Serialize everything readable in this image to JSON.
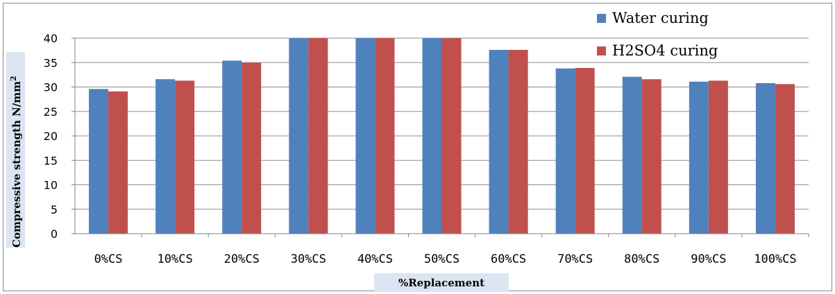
{
  "chart_data": {
    "type": "bar",
    "categories": [
      "0%CS",
      "10%CS",
      "20%CS",
      "30%CS",
      "40%CS",
      "50%CS",
      "60%CS",
      "70%CS",
      "80%CS",
      "90%CS",
      "100%CS"
    ],
    "series": [
      {
        "name": "Water curing",
        "color": "#4f81bd",
        "values": [
          29.6,
          31.6,
          35.4,
          40,
          40,
          40,
          37.6,
          33.8,
          32.1,
          31.1,
          30.8
        ]
      },
      {
        "name": "H2SO4  curing",
        "color": "#c0504d",
        "values": [
          29.1,
          31.3,
          35.0,
          40,
          40,
          40,
          37.6,
          33.9,
          31.6,
          31.3,
          30.6
        ]
      }
    ],
    "xlabel": "%Replacement",
    "ylabel": "Compressive strength N/mm",
    "ylabel_superscript": "2",
    "ylim": [
      0,
      40
    ],
    "yticks": [
      0,
      5,
      10,
      15,
      20,
      25,
      30,
      35,
      40
    ],
    "grid": true,
    "legend_position": "top-right"
  }
}
